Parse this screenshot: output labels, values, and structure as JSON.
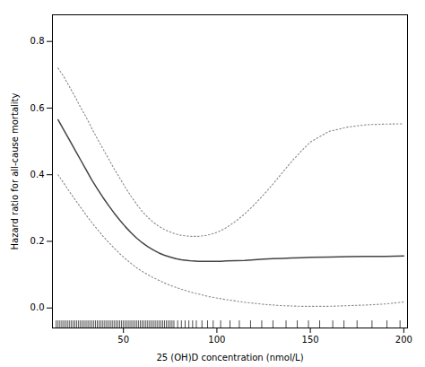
{
  "chart_data": {
    "type": "line",
    "xlabel": "25 (OH)D concentration (nmol/L)",
    "ylabel": "Hazard ratio for all-cause mortality",
    "x": [
      15,
      18,
      21,
      24,
      27,
      30,
      33,
      36,
      39,
      42,
      45,
      48,
      51,
      54,
      57,
      60,
      63,
      66,
      69,
      72,
      75,
      78,
      81,
      84,
      87,
      90,
      93,
      96,
      99,
      102,
      105,
      110,
      115,
      120,
      125,
      130,
      135,
      140,
      145,
      150,
      160,
      170,
      180,
      190,
      200
    ],
    "series": [
      {
        "color": "#888888",
        "line_style": "dotted",
        "values": [
          0.72,
          0.695,
          0.665,
          0.635,
          0.603,
          0.573,
          0.54,
          0.508,
          0.478,
          0.448,
          0.418,
          0.39,
          0.362,
          0.336,
          0.312,
          0.29,
          0.272,
          0.257,
          0.245,
          0.235,
          0.228,
          0.222,
          0.218,
          0.216,
          0.215,
          0.215,
          0.217,
          0.22,
          0.225,
          0.232,
          0.241,
          0.26,
          0.283,
          0.31,
          0.34,
          0.372,
          0.406,
          0.44,
          0.47,
          0.498,
          0.53,
          0.543,
          0.55,
          0.552,
          0.553
        ]
      },
      {
        "color": "#888888",
        "line_style": "dotted",
        "values": [
          0.4,
          0.375,
          0.35,
          0.326,
          0.303,
          0.279,
          0.257,
          0.236,
          0.216,
          0.197,
          0.18,
          0.163,
          0.148,
          0.134,
          0.121,
          0.11,
          0.1,
          0.091,
          0.083,
          0.075,
          0.068,
          0.062,
          0.056,
          0.051,
          0.046,
          0.042,
          0.038,
          0.034,
          0.031,
          0.028,
          0.025,
          0.021,
          0.017,
          0.014,
          0.011,
          0.009,
          0.007,
          0.006,
          0.005,
          0.005,
          0.005,
          0.007,
          0.009,
          0.012,
          0.018
        ]
      },
      {
        "color": "#444444",
        "line_style": "solid",
        "values": [
          0.565,
          0.535,
          0.505,
          0.475,
          0.445,
          0.415,
          0.385,
          0.358,
          0.332,
          0.308,
          0.285,
          0.264,
          0.244,
          0.226,
          0.21,
          0.196,
          0.184,
          0.174,
          0.165,
          0.158,
          0.153,
          0.148,
          0.145,
          0.143,
          0.141,
          0.14,
          0.14,
          0.14,
          0.14,
          0.14,
          0.141,
          0.142,
          0.143,
          0.145,
          0.147,
          0.148,
          0.149,
          0.15,
          0.151,
          0.152,
          0.153,
          0.154,
          0.155,
          0.155,
          0.156
        ]
      }
    ],
    "rug": [
      14,
      15,
      16,
      17,
      18,
      19,
      20,
      21,
      22,
      23,
      24,
      25,
      26,
      27,
      28,
      29,
      30,
      31,
      32,
      33,
      34,
      35,
      36,
      37,
      38,
      39,
      40,
      41,
      42,
      43,
      44,
      45,
      46,
      47,
      48,
      49,
      50,
      51,
      52,
      53,
      54,
      55,
      56,
      57,
      58,
      59,
      60,
      61,
      62,
      63,
      64,
      65,
      66,
      67,
      68,
      69,
      70,
      71,
      72,
      73,
      74,
      75,
      76,
      77,
      79,
      81,
      83,
      85,
      87,
      89,
      92,
      95,
      98,
      102,
      107,
      112,
      118,
      124,
      130,
      137,
      143,
      149,
      155,
      162,
      168,
      175,
      183,
      191,
      198
    ],
    "xlim": [
      12,
      202
    ],
    "xticks": [
      50,
      100,
      150,
      200
    ],
    "ylim": [
      -0.06,
      0.88
    ],
    "yticks": [
      {
        "value": 0,
        "label": "0.0"
      },
      0.2,
      0.4,
      0.6,
      0.8
    ],
    "grid": false
  }
}
